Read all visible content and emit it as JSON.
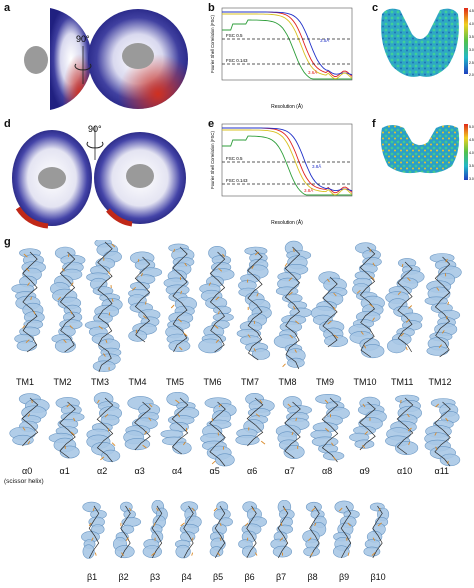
{
  "panels": {
    "a": "a",
    "b": "b",
    "c": "c",
    "d": "d",
    "e": "e",
    "f": "f",
    "g": "g"
  },
  "rotation_label_top": "90°",
  "rotation_label_bottom": "90°",
  "fsc_b": {
    "ylabel": "Fourier Shell Correlation (FSC)",
    "xlabel": "Resolution (Å)",
    "line_05": "FSC 0.5",
    "line_0143": "FSC 0.143",
    "res_blue": "3.5Å",
    "res_red": "3.6Å"
  },
  "fsc_e": {
    "ylabel": "Fourier Shell Correlation (FSC)",
    "xlabel": "Resolution (Å)",
    "line_05": "FSC 0.5",
    "line_0143": "FSC 0.143",
    "res_blue": "3.8Å",
    "res_red": "3.8Å"
  },
  "colorbar_c": {
    "ticks": [
      "4.5",
      "4.0",
      "3.5",
      "3.0",
      "2.5",
      "2.0"
    ]
  },
  "colorbar_f": {
    "ticks": [
      "5.0",
      "4.5",
      "4.0",
      "3.5",
      "3.0"
    ]
  },
  "tm_labels": [
    "TM1",
    "TM2",
    "TM3",
    "TM4",
    "TM5",
    "TM6",
    "TM7",
    "TM8",
    "TM9",
    "TM10",
    "TM11",
    "TM12"
  ],
  "alpha_labels": [
    "α0",
    "α1",
    "α2",
    "α3",
    "α4",
    "α5",
    "α6",
    "α7",
    "α8",
    "α9",
    "α10",
    "α11"
  ],
  "alpha0_note": "(scissor helix)",
  "beta_labels": [
    "β1",
    "β2",
    "β3",
    "β4",
    "β5",
    "β6",
    "β7",
    "β8",
    "β9",
    "β10"
  ],
  "colors": {
    "fsc_green": "#2e9e3a",
    "fsc_red": "#e02020",
    "fsc_blue": "#2030c8",
    "fsc_yellow": "#d8c020",
    "density": "#a9c8e6",
    "density_edge": "#5f8fbf"
  }
}
